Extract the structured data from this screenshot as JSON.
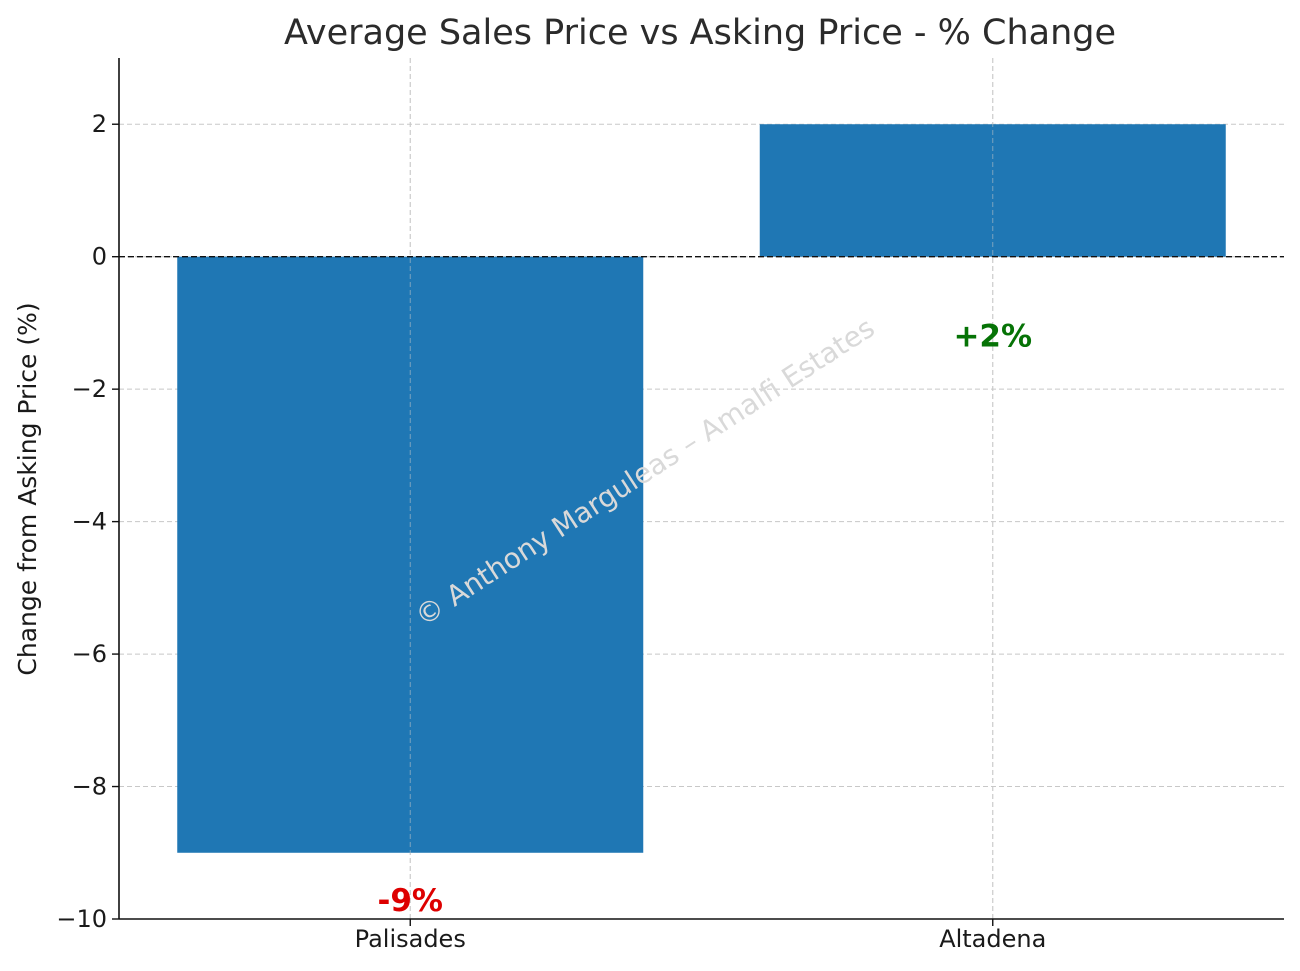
{
  "chart_data": {
    "type": "bar",
    "title": "Average Sales Price vs Asking Price - % Change",
    "xlabel": "",
    "ylabel": "Change from Asking Price (%)",
    "categories": [
      "Palisades",
      "Altadena"
    ],
    "values": [
      -9,
      2
    ],
    "data_labels": [
      "-9%",
      "+2%"
    ],
    "data_label_colors": [
      "#dd0000",
      "#067306"
    ],
    "bar_color": "#1f77b4",
    "ylim": [
      -10,
      3
    ],
    "yticks": [
      2,
      0,
      -2,
      -4,
      -6,
      -8,
      -10
    ],
    "ytick_labels": [
      "2",
      "0",
      "−2",
      "−4",
      "−6",
      "−8",
      "−10"
    ],
    "grid": true,
    "zero_line": true,
    "watermark": "© Anthony Marguleas – Amalfi Estates"
  }
}
